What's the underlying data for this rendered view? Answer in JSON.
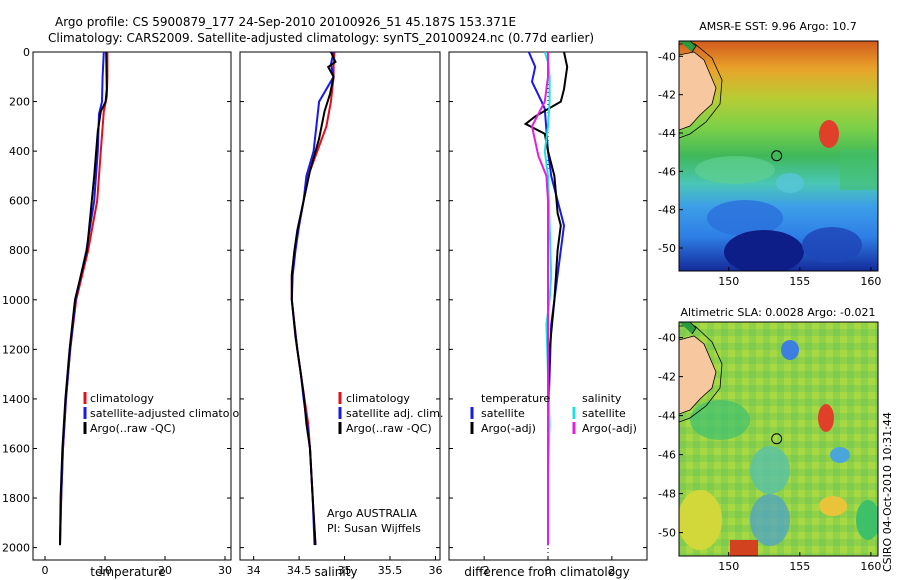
{
  "header": {
    "line1": "Argo profile: CS 5900879_177 24-Sep-2010 20100926_51 45.187S 153.371E",
    "line2": "Climatology: CARS2009. Satellite-adjusted climatology: synTS_20100924.nc (0.77d earlier)"
  },
  "colors": {
    "climatology": "#e0101a",
    "satellite": "#1a1ae6",
    "argo": "#000000",
    "satellite_diff_salinity": "#22e0e0",
    "argo_diff_salinity": "#e020e0",
    "land": "#f7c7a0"
  },
  "chart_data": [
    {
      "type": "line",
      "name": "temperature-profile",
      "xlabel": "temperature",
      "ylabel": "",
      "xlim": [
        -2,
        31
      ],
      "ylim": [
        2050,
        0
      ],
      "xticks": [
        0,
        10,
        20,
        30
      ],
      "yticks": [
        0,
        200,
        400,
        600,
        800,
        1000,
        1200,
        1400,
        1600,
        1800,
        2000
      ],
      "legend": [
        "climatology",
        "satellite-adjusted climatology",
        "Argo(..raw -QC)"
      ],
      "legend_location": "lower-left",
      "series": [
        {
          "name": "climatology",
          "color_key": "climatology",
          "points": [
            [
              10.4,
              0
            ],
            [
              10.4,
              100
            ],
            [
              10.3,
              180
            ],
            [
              9.8,
              240
            ],
            [
              9.3,
              400
            ],
            [
              8.7,
              600
            ],
            [
              7.2,
              800
            ],
            [
              5.2,
              1000
            ],
            [
              4.2,
              1200
            ],
            [
              3.5,
              1400
            ],
            [
              3.0,
              1600
            ],
            [
              2.7,
              1800
            ],
            [
              2.5,
              1990
            ]
          ]
        },
        {
          "name": "satellite-adjusted climatology",
          "color_key": "satellite",
          "points": [
            [
              9.8,
              0
            ],
            [
              9.6,
              100
            ],
            [
              9.5,
              200
            ],
            [
              9.0,
              250
            ],
            [
              8.8,
              400
            ],
            [
              8.2,
              600
            ],
            [
              6.9,
              800
            ],
            [
              5.1,
              1000
            ],
            [
              4.2,
              1200
            ],
            [
              3.5,
              1400
            ],
            [
              3.0,
              1600
            ],
            [
              2.7,
              1800
            ],
            [
              2.5,
              1990
            ]
          ]
        },
        {
          "name": "Argo(..raw -QC)",
          "color_key": "argo",
          "points": [
            [
              10.2,
              0
            ],
            [
              10.3,
              150
            ],
            [
              10.1,
              200
            ],
            [
              9.3,
              240
            ],
            [
              8.8,
              320
            ],
            [
              8.2,
              500
            ],
            [
              7.0,
              800
            ],
            [
              5.0,
              1000
            ],
            [
              4.1,
              1200
            ],
            [
              3.4,
              1400
            ],
            [
              2.9,
              1600
            ],
            [
              2.6,
              1800
            ],
            [
              2.5,
              1990
            ]
          ]
        }
      ]
    },
    {
      "type": "line",
      "name": "salinity-profile",
      "xlabel": "salinity",
      "ylabel": "",
      "xlim": [
        33.85,
        36.05
      ],
      "ylim": [
        2050,
        0
      ],
      "xticks": [
        34,
        34.5,
        35,
        35.5,
        36
      ],
      "legend": [
        "climatology",
        "satellite adj. clim.",
        "Argo(..raw -QC)"
      ],
      "legend_location": "lower-right",
      "annotations": [
        "Argo AUSTRALIA",
        "PI: Susan Wijffels"
      ],
      "series": [
        {
          "name": "climatology",
          "color_key": "climatology",
          "points": [
            [
              34.89,
              0
            ],
            [
              34.88,
              50
            ],
            [
              34.88,
              100
            ],
            [
              34.85,
              200
            ],
            [
              34.8,
              300
            ],
            [
              34.7,
              400
            ],
            [
              34.6,
              500
            ],
            [
              34.55,
              600
            ],
            [
              34.5,
              700
            ],
            [
              34.45,
              800
            ],
            [
              34.42,
              900
            ],
            [
              34.42,
              1000
            ],
            [
              34.45,
              1100
            ],
            [
              34.48,
              1200
            ],
            [
              34.52,
              1300
            ],
            [
              34.56,
              1400
            ],
            [
              34.6,
              1500
            ],
            [
              34.62,
              1600
            ],
            [
              34.65,
              1800
            ],
            [
              34.68,
              1990
            ]
          ]
        },
        {
          "name": "satellite adj. clim.",
          "color_key": "satellite",
          "points": [
            [
              34.88,
              0
            ],
            [
              34.85,
              50
            ],
            [
              34.88,
              100
            ],
            [
              34.72,
              200
            ],
            [
              34.66,
              400
            ],
            [
              34.58,
              500
            ],
            [
              34.55,
              600
            ],
            [
              34.5,
              700
            ],
            [
              34.46,
              800
            ],
            [
              34.43,
              900
            ],
            [
              34.42,
              1000
            ],
            [
              34.45,
              1100
            ],
            [
              34.48,
              1200
            ],
            [
              34.52,
              1300
            ],
            [
              34.55,
              1400
            ],
            [
              34.59,
              1500
            ],
            [
              34.62,
              1600
            ],
            [
              34.65,
              1800
            ],
            [
              34.67,
              1990
            ]
          ]
        },
        {
          "name": "Argo(..raw -QC)",
          "color_key": "argo",
          "points": [
            [
              34.85,
              0
            ],
            [
              34.9,
              40
            ],
            [
              34.82,
              60
            ],
            [
              34.88,
              100
            ],
            [
              34.84,
              170
            ],
            [
              34.78,
              240
            ],
            [
              34.72,
              350
            ],
            [
              34.62,
              480
            ],
            [
              34.55,
              600
            ],
            [
              34.48,
              720
            ],
            [
              34.45,
              800
            ],
            [
              34.42,
              900
            ],
            [
              34.42,
              1000
            ],
            [
              34.46,
              1150
            ],
            [
              34.5,
              1250
            ],
            [
              34.55,
              1380
            ],
            [
              34.58,
              1500
            ],
            [
              34.62,
              1600
            ],
            [
              34.65,
              1800
            ],
            [
              34.68,
              1990
            ]
          ]
        }
      ]
    },
    {
      "type": "line",
      "name": "difference-profile",
      "xlabel": "difference from climatology",
      "ylabel": "",
      "xlim": [
        -3.1,
        3.1
      ],
      "ylim": [
        2050,
        0
      ],
      "xticks": [
        -2,
        0,
        2
      ],
      "legend_groups": [
        {
          "title": "temperature",
          "entries": [
            "satellite",
            "Argo(-adj)"
          ]
        },
        {
          "title": "salinity",
          "entries": [
            "satellite",
            "Argo(-adj)"
          ]
        }
      ],
      "series": [
        {
          "name": "temperature satellite",
          "color_key": "satellite",
          "points": [
            [
              -0.6,
              0
            ],
            [
              -0.4,
              60
            ],
            [
              -0.5,
              120
            ],
            [
              -0.2,
              200
            ],
            [
              -0.1,
              230
            ],
            [
              0.0,
              400
            ],
            [
              0.1,
              500
            ],
            [
              0.3,
              600
            ],
            [
              0.5,
              700
            ],
            [
              0.4,
              800
            ],
            [
              0.3,
              900
            ],
            [
              0.2,
              1000
            ],
            [
              0.1,
              1100
            ],
            [
              0.05,
              1300
            ],
            [
              0.0,
              1500
            ],
            [
              0.0,
              1700
            ],
            [
              0.0,
              1990
            ]
          ]
        },
        {
          "name": "temperature Argo(-adj)",
          "color_key": "argo",
          "points": [
            [
              0.5,
              0
            ],
            [
              0.6,
              60
            ],
            [
              0.5,
              150
            ],
            [
              0.4,
              200
            ],
            [
              -0.4,
              260
            ],
            [
              -0.7,
              290
            ],
            [
              -0.1,
              330
            ],
            [
              0.0,
              400
            ],
            [
              0.2,
              500
            ],
            [
              0.3,
              650
            ],
            [
              0.4,
              700
            ],
            [
              0.3,
              800
            ],
            [
              0.2,
              1000
            ],
            [
              0.05,
              1200
            ],
            [
              0.0,
              1500
            ],
            [
              0.0,
              1990
            ]
          ]
        },
        {
          "name": "salinity satellite",
          "color_key": "satellite_diff_salinity",
          "points": [
            [
              -0.1,
              0
            ],
            [
              0.0,
              40
            ],
            [
              0.05,
              100
            ],
            [
              0.05,
              200
            ],
            [
              0.0,
              300
            ],
            [
              -0.1,
              400
            ],
            [
              0.0,
              500
            ],
            [
              0.05,
              700
            ],
            [
              0.1,
              900
            ],
            [
              0.05,
              1000
            ],
            [
              -0.05,
              1100
            ],
            [
              0.0,
              1300
            ],
            [
              0.05,
              1500
            ],
            [
              0.0,
              1700
            ],
            [
              0.0,
              1990
            ]
          ]
        },
        {
          "name": "salinity Argo(-adj)",
          "color_key": "argo_diff_salinity",
          "points": [
            [
              0.0,
              0
            ],
            [
              0.0,
              100
            ],
            [
              -0.1,
              200
            ],
            [
              -0.5,
              300
            ],
            [
              -0.3,
              420
            ],
            [
              -0.05,
              500
            ],
            [
              0.0,
              600
            ],
            [
              0.0,
              900
            ],
            [
              0.0,
              1200
            ],
            [
              0.0,
              1500
            ],
            [
              0.0,
              1990
            ]
          ]
        }
      ]
    },
    {
      "type": "heatmap",
      "name": "sst-map",
      "title": "AMSR-E SST: 9.96 Argo: 10.7",
      "xlim": [
        146.5,
        160.5
      ],
      "ylim": [
        -51.2,
        -39.2
      ],
      "xticks": [
        150,
        155,
        160
      ],
      "yticks": [
        -40,
        -42,
        -44,
        -46,
        -48,
        -50
      ],
      "float_position": {
        "lon": 153.371,
        "lat": -45.187
      }
    },
    {
      "type": "heatmap",
      "name": "sla-map",
      "title": "Altimetric SLA: 0.0028 Argo: -0.021",
      "xlim": [
        146.5,
        160.5
      ],
      "ylim": [
        -51.2,
        -39.2
      ],
      "xticks": [
        150,
        155,
        160
      ],
      "yticks": [
        -40,
        -42,
        -44,
        -46,
        -48,
        -50
      ],
      "float_position": {
        "lon": 153.371,
        "lat": -45.187
      }
    }
  ],
  "footer": {
    "credit": "CSIRO 04-Oct-2010 10:31:44"
  }
}
